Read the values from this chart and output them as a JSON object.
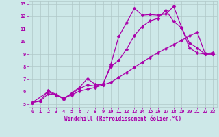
{
  "xlabel": "Windchill (Refroidissement éolien,°C)",
  "xlim": [
    -0.5,
    23.5
  ],
  "ylim": [
    4.8,
    13.2
  ],
  "xticks": [
    0,
    1,
    2,
    3,
    4,
    5,
    6,
    7,
    8,
    9,
    10,
    11,
    12,
    13,
    14,
    15,
    16,
    17,
    18,
    19,
    20,
    21,
    22,
    23
  ],
  "yticks": [
    5,
    6,
    7,
    8,
    9,
    10,
    11,
    12,
    13
  ],
  "bg_color": "#cde8e8",
  "line_color": "#aa00aa",
  "line1_x": [
    0,
    1,
    2,
    3,
    4,
    5,
    6,
    7,
    8,
    9,
    10,
    11,
    12,
    13,
    14,
    15,
    16,
    17,
    18,
    19,
    20,
    21,
    22,
    23
  ],
  "line1_y": [
    5.15,
    5.3,
    6.1,
    5.8,
    5.4,
    5.9,
    6.35,
    7.05,
    6.6,
    6.55,
    8.2,
    10.4,
    11.5,
    12.65,
    12.1,
    12.15,
    12.1,
    12.2,
    12.8,
    11.15,
    9.5,
    9.1,
    9.0,
    9.0
  ],
  "line2_x": [
    0,
    2,
    3,
    4,
    5,
    6,
    7,
    8,
    9,
    10,
    11,
    12,
    13,
    14,
    15,
    16,
    17,
    18,
    19,
    20,
    21,
    22,
    23
  ],
  "line2_y": [
    5.15,
    6.0,
    5.75,
    5.5,
    5.85,
    6.25,
    6.55,
    6.45,
    6.65,
    8.0,
    8.5,
    9.4,
    10.5,
    11.2,
    11.65,
    11.85,
    12.5,
    11.6,
    11.1,
    9.9,
    9.5,
    9.0,
    9.0
  ],
  "line3_x": [
    0,
    1,
    2,
    3,
    4,
    5,
    6,
    7,
    8,
    9,
    10,
    11,
    12,
    13,
    14,
    15,
    16,
    17,
    18,
    19,
    20,
    21,
    22,
    23
  ],
  "line3_y": [
    5.15,
    5.25,
    5.85,
    5.75,
    5.5,
    5.75,
    6.05,
    6.2,
    6.35,
    6.55,
    6.75,
    7.15,
    7.55,
    7.95,
    8.35,
    8.75,
    9.1,
    9.45,
    9.75,
    10.1,
    10.45,
    10.75,
    9.05,
    9.1
  ],
  "grid_color": "#b0c8c8",
  "tick_color": "#aa00aa",
  "label_color": "#aa00aa",
  "tick_fontsize": 5.0,
  "xlabel_fontsize": 5.5
}
